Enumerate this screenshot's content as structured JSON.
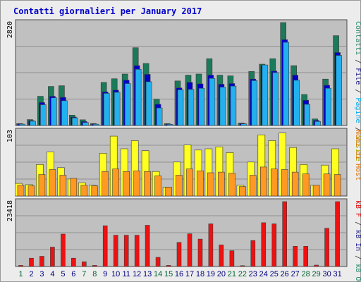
{
  "title": "Contatti giornalieri per January 2017",
  "panels": {
    "top_max": "2820",
    "mid_max": "103",
    "bot_max": "23418"
  },
  "right_legend": {
    "top": [
      {
        "text": "Contatti",
        "color": "#2a8a6a"
      },
      {
        "text": " / ",
        "color": "#2a2a2a"
      },
      {
        "text": "File",
        "color": "#1a1a8a"
      },
      {
        "text": " / ",
        "color": "#2a2a2a"
      },
      {
        "text": "Pagine",
        "color": "#00aaee"
      },
      {
        "text": " / ",
        "color": "#2a2a2a"
      },
      {
        "text": "Visite",
        "color": "#aaaa00"
      }
    ],
    "mid": [
      {
        "text": "Nomi di Host",
        "color": "#e07000"
      }
    ],
    "bot": [
      {
        "text": "kB F",
        "color": "#dd0000"
      },
      {
        "text": " / ",
        "color": "#2a2a2a"
      },
      {
        "text": "kB In",
        "color": "#1a1a8a"
      },
      {
        "text": " / ",
        "color": "#2a2a2a"
      },
      {
        "text": "kB Out",
        "color": "#2a8a6a"
      }
    ]
  },
  "colors": {
    "hits": "#1a7a5a",
    "files": "#0000cc",
    "pages": "#22b0ee",
    "visits": "#ffff22",
    "sites": "#ff9922",
    "kbytes": "#ee1111",
    "weekday_label": "#000080",
    "weekend_label": "#006633"
  },
  "chart_data": [
    {
      "type": "bar",
      "title": "Contatti giornalieri per January 2017",
      "categories": [
        "1",
        "2",
        "3",
        "4",
        "5",
        "6",
        "7",
        "8",
        "9",
        "10",
        "11",
        "12",
        "13",
        "14",
        "15",
        "16",
        "17",
        "18",
        "19",
        "20",
        "21",
        "22",
        "23",
        "24",
        "25",
        "26",
        "27",
        "28",
        "29",
        "30",
        "31"
      ],
      "ylim": [
        0,
        2820
      ],
      "series": [
        {
          "name": "Contatti",
          "values": [
            52,
            163,
            800,
            1070,
            1090,
            283,
            157,
            54,
            1180,
            1280,
            1410,
            2130,
            1700,
            720,
            52,
            1220,
            1380,
            1410,
            1830,
            1380,
            1360,
            68,
            1480,
            1680,
            1830,
            2820,
            1640,
            850,
            180,
            1270,
            2460
          ]
        },
        {
          "name": "File",
          "values": [
            41,
            134,
            630,
            800,
            770,
            232,
            109,
            39,
            920,
            970,
            1240,
            1640,
            1400,
            580,
            36,
            1030,
            1180,
            1140,
            1380,
            1130,
            1150,
            52,
            1270,
            1650,
            1490,
            2350,
            1380,
            690,
            140,
            1100,
            2000
          ]
        },
        {
          "name": "Pagine",
          "values": [
            36,
            118,
            570,
            760,
            680,
            210,
            85,
            35,
            880,
            910,
            1150,
            1540,
            1200,
            480,
            30,
            980,
            990,
            1020,
            1290,
            1050,
            1080,
            45,
            1230,
            1660,
            1450,
            2280,
            1240,
            580,
            110,
            1020,
            1920
          ]
        }
      ]
    },
    {
      "type": "bar",
      "categories": [
        "1",
        "2",
        "3",
        "4",
        "5",
        "6",
        "7",
        "8",
        "9",
        "10",
        "11",
        "12",
        "13",
        "14",
        "15",
        "16",
        "17",
        "18",
        "19",
        "20",
        "21",
        "22",
        "23",
        "24",
        "25",
        "26",
        "27",
        "28",
        "29",
        "30",
        "31"
      ],
      "ylim": [
        0,
        103
      ],
      "series": [
        {
          "name": "Visite",
          "values": [
            20,
            18,
            50,
            70,
            45,
            27,
            21,
            17,
            68,
            95,
            75,
            88,
            72,
            39,
            14,
            54,
            81,
            73,
            75,
            78,
            69,
            17,
            54,
            97,
            88,
            100,
            77,
            50,
            17,
            49,
            75
          ]
        },
        {
          "name": "Nomi di Host",
          "values": [
            17,
            16,
            34,
            42,
            33,
            28,
            17,
            16,
            39,
            43,
            39,
            40,
            39,
            32,
            14,
            33,
            43,
            40,
            37,
            38,
            36,
            15,
            33,
            46,
            43,
            42,
            38,
            35,
            17,
            35,
            34
          ]
        }
      ]
    },
    {
      "type": "bar",
      "categories": [
        "1",
        "2",
        "3",
        "4",
        "5",
        "6",
        "7",
        "8",
        "9",
        "10",
        "11",
        "12",
        "13",
        "14",
        "15",
        "16",
        "17",
        "18",
        "19",
        "20",
        "21",
        "22",
        "23",
        "24",
        "25",
        "26",
        "27",
        "28",
        "29",
        "30",
        "31"
      ],
      "ylim": [
        0,
        23418
      ],
      "series": [
        {
          "name": "kB F",
          "values": [
            400,
            3000,
            3700,
            7000,
            11700,
            3000,
            1700,
            400,
            14700,
            11300,
            11300,
            11300,
            14900,
            3300,
            400,
            8700,
            11800,
            9900,
            15400,
            7800,
            5700,
            300,
            9400,
            15800,
            15400,
            23418,
            7300,
            7300,
            500,
            13800,
            23418
          ]
        }
      ]
    }
  ]
}
